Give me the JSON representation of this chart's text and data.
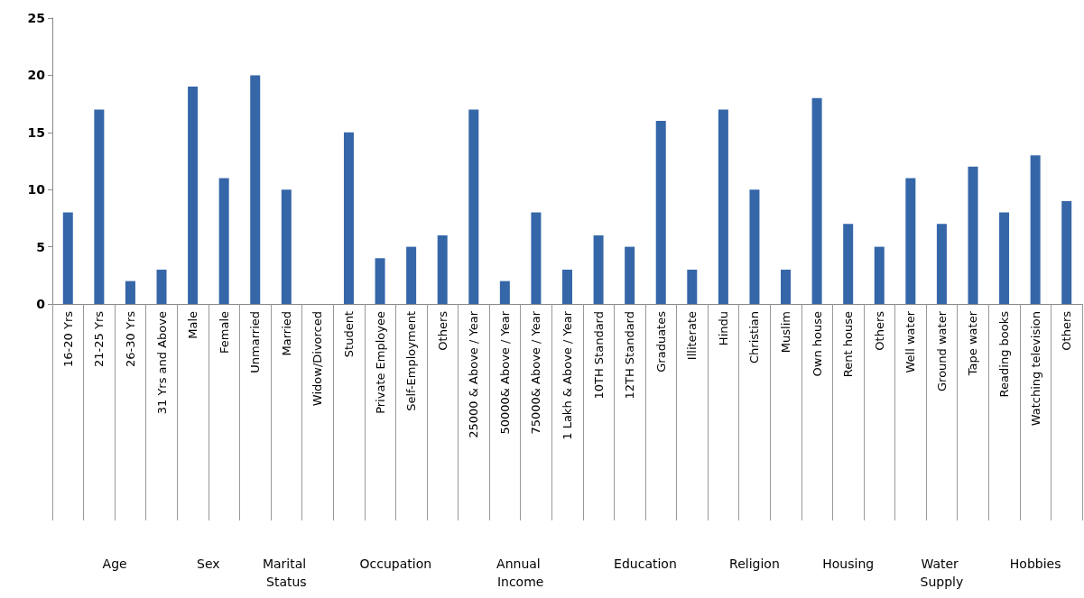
{
  "chart_data": {
    "type": "bar",
    "categories": [
      "16-20 Yrs",
      "21-25 Yrs",
      "26-30 Yrs",
      "31 Yrs and Above",
      "Male",
      "Female",
      "Unmarried",
      "Married",
      "Widow/Divorced",
      "Student",
      "Private Employee",
      "Self-Employment",
      "Others",
      "25000 & Above / Year",
      "50000& Above / Year",
      "75000& Above / Year",
      "1 Lakh & Above / Year",
      "10TH Standard",
      "12TH Standard",
      "Graduates",
      "Illiterate",
      "Hindu",
      "Christian",
      "Muslim",
      "Own house",
      "Rent house",
      "Others",
      "Well water",
      "Ground water",
      "Tape water",
      "Reading books",
      "Watching television",
      "Others"
    ],
    "values": [
      8,
      17,
      2,
      3,
      19,
      11,
      20,
      10,
      0,
      15,
      4,
      5,
      6,
      17,
      2,
      8,
      3,
      6,
      5,
      16,
      3,
      17,
      10,
      3,
      18,
      7,
      5,
      11,
      7,
      12,
      8,
      13,
      9
    ],
    "color": "#3566a8",
    "ylim": [
      0,
      25
    ],
    "yticks": [
      0,
      5,
      10,
      15,
      20,
      25
    ],
    "grid": false,
    "annotations": [
      "Age",
      "Sex",
      "Marital Status",
      "Occupation",
      "Annual Income",
      "Education",
      "Religion",
      "Housing",
      "Water Supply",
      "Hobbies"
    ]
  }
}
